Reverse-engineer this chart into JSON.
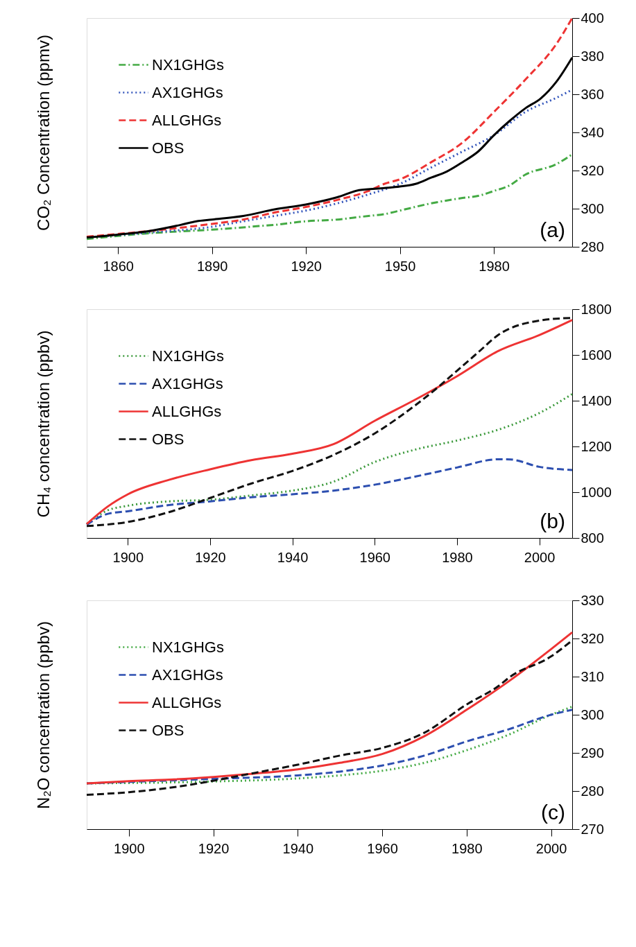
{
  "chart_data": [
    {
      "type": "line",
      "ylabel": "CO₂ Concentration (ppmv)",
      "annotations": [
        "(a)"
      ],
      "legend": "top left",
      "grid": false,
      "xlim": [
        1850,
        2005
      ],
      "xticks": [
        1860,
        1890,
        1920,
        1950,
        1980
      ],
      "ylim": [
        280,
        400
      ],
      "yticks": [
        280,
        300,
        320,
        340,
        360,
        380,
        400
      ],
      "series": [
        {
          "name": "NX1GHGs",
          "color": "#44aa44",
          "line_style": "dashdot",
          "x": [
            1850,
            1870,
            1890,
            1900,
            1905,
            1910,
            1920,
            1930,
            1940,
            1945,
            1950,
            1960,
            1970,
            1975,
            1980,
            1985,
            1990,
            2000,
            2005
          ],
          "values": [
            284.1,
            287.1,
            289.0,
            290.2,
            290.9,
            291.5,
            293.4,
            294.3,
            296.2,
            297.1,
            299.0,
            302.8,
            305.6,
            306.7,
            309.3,
            312.2,
            317.8,
            323.4,
            328.5
          ]
        },
        {
          "name": "AX1GHGs",
          "color": "#3355bb",
          "line_style": "dotted",
          "x": [
            1850,
            1870,
            1890,
            1900,
            1910,
            1920,
            1930,
            1940,
            1950,
            1960,
            1970,
            1980,
            1990,
            2000,
            2005
          ],
          "values": [
            284.9,
            287.5,
            290.5,
            293.4,
            296.2,
            299.0,
            302.8,
            307.5,
            313.0,
            321.6,
            330.0,
            338.5,
            350.7,
            358.2,
            362.4
          ]
        },
        {
          "name": "ALLGHGs",
          "color": "#ee3333",
          "line_style": "dashed",
          "x": [
            1850,
            1870,
            1890,
            1900,
            1910,
            1920,
            1930,
            1940,
            1945,
            1950,
            1960,
            1970,
            1980,
            1990,
            2000,
            2005
          ],
          "values": [
            285.3,
            288.3,
            292.0,
            294.3,
            298.0,
            300.9,
            304.6,
            309.3,
            313.0,
            315.4,
            324.4,
            334.7,
            350.7,
            367.6,
            386.5,
            400.0
          ]
        },
        {
          "name": "OBS",
          "color": "#000000",
          "line_style": "solid",
          "x": [
            1850,
            1860,
            1870,
            1880,
            1885,
            1890,
            1900,
            1910,
            1920,
            1930,
            1937,
            1945,
            1950,
            1955,
            1960,
            1965,
            1970,
            1975,
            1980,
            1985,
            1990,
            1995,
            2000,
            2005
          ],
          "values": [
            284.9,
            286.4,
            288.3,
            291.5,
            293.4,
            294.3,
            296.2,
            299.6,
            302.2,
            306.0,
            309.7,
            310.8,
            311.6,
            313.0,
            316.3,
            319.5,
            324.4,
            330.0,
            338.5,
            346.0,
            352.6,
            357.9,
            366.7,
            379.3
          ]
        }
      ]
    },
    {
      "type": "line",
      "ylabel": "CH₄ concentration (ppbv)",
      "annotations": [
        "(b)"
      ],
      "legend": "top left",
      "grid": false,
      "xlim": [
        1890,
        2008
      ],
      "xticks": [
        1900,
        1920,
        1940,
        1960,
        1980,
        2000
      ],
      "ylim": [
        800,
        1800
      ],
      "yticks": [
        800,
        1000,
        1200,
        1400,
        1600,
        1800
      ],
      "series": [
        {
          "name": "NX1GHGs",
          "color": "#3c9a3c",
          "line_style": "dotted",
          "x": [
            1890,
            1895,
            1900,
            1910,
            1920,
            1930,
            1940,
            1950,
            1960,
            1970,
            1980,
            1990,
            2000,
            2008
          ],
          "values": [
            861,
            920,
            941,
            960,
            967,
            986,
            1007,
            1046,
            1132,
            1187,
            1226,
            1273,
            1346,
            1429
          ]
        },
        {
          "name": "AX1GHGs",
          "color": "#2d4fb0",
          "line_style": "dashed",
          "x": [
            1890,
            1895,
            1900,
            1910,
            1920,
            1930,
            1940,
            1950,
            1960,
            1970,
            1980,
            1990,
            1993,
            2000,
            2008
          ],
          "values": [
            858,
            905,
            917,
            944,
            960,
            978,
            991,
            1007,
            1033,
            1069,
            1108,
            1144,
            1143,
            1111,
            1097
          ]
        },
        {
          "name": "ALLGHGs",
          "color": "#ee3333",
          "line_style": "solid",
          "x": [
            1890,
            1895,
            1900,
            1910,
            1920,
            1930,
            1940,
            1950,
            1960,
            1970,
            1980,
            1990,
            2000,
            2008
          ],
          "values": [
            861,
            936,
            991,
            1054,
            1100,
            1140,
            1168,
            1210,
            1312,
            1406,
            1507,
            1617,
            1687,
            1753
          ]
        },
        {
          "name": "OBS",
          "color": "#111111",
          "line_style": "dashed",
          "x": [
            1890,
            1900,
            1910,
            1920,
            1930,
            1940,
            1950,
            1960,
            1970,
            1975,
            1980,
            1985,
            1990,
            2000,
            2008
          ],
          "values": [
            852,
            870,
            913,
            975,
            1038,
            1093,
            1163,
            1257,
            1382,
            1453,
            1531,
            1609,
            1687,
            1750,
            1762
          ]
        }
      ]
    },
    {
      "type": "line",
      "ylabel": "N₂O concentration (ppbv)",
      "annotations": [
        "(c)"
      ],
      "legend": "top left",
      "grid": false,
      "xlim": [
        1890,
        2005
      ],
      "xticks": [
        1900,
        1920,
        1940,
        1960,
        1980,
        2000
      ],
      "ylim": [
        270,
        330
      ],
      "yticks": [
        270,
        280,
        290,
        300,
        310,
        320,
        330
      ],
      "series": [
        {
          "name": "NX1GHGs",
          "color": "#44aa44",
          "line_style": "dotted",
          "x": [
            1890,
            1920,
            1940,
            1950,
            1960,
            1970,
            1980,
            1990,
            2000,
            2005
          ],
          "values": [
            282.0,
            282.5,
            283.3,
            284.1,
            285.3,
            287.4,
            290.7,
            294.8,
            300.0,
            302.1
          ]
        },
        {
          "name": "AX1GHGs",
          "color": "#2d4fb0",
          "line_style": "dashed",
          "x": [
            1890,
            1920,
            1940,
            1950,
            1960,
            1970,
            1980,
            1990,
            2000,
            2005
          ],
          "values": [
            282.0,
            283.2,
            284.1,
            285.1,
            286.7,
            289.3,
            293.0,
            296.2,
            300.0,
            301.3
          ]
        },
        {
          "name": "ALLGHGs",
          "color": "#ee3333",
          "line_style": "solid",
          "x": [
            1890,
            1900,
            1910,
            1920,
            1930,
            1940,
            1950,
            1960,
            1970,
            1980,
            1990,
            2000,
            2005
          ],
          "values": [
            282.0,
            282.6,
            283.0,
            283.7,
            284.6,
            285.7,
            287.4,
            289.7,
            294.4,
            301.3,
            308.8,
            317.2,
            321.6
          ]
        },
        {
          "name": "OBS",
          "color": "#111111",
          "line_style": "dashed",
          "x": [
            1890,
            1900,
            1910,
            1920,
            1930,
            1940,
            1950,
            1960,
            1970,
            1980,
            1988,
            1990,
            2000,
            2005
          ],
          "values": [
            279.0,
            279.7,
            280.9,
            282.7,
            284.8,
            286.9,
            289.3,
            291.3,
            295.3,
            302.7,
            307.9,
            309.7,
            315.3,
            319.5
          ]
        }
      ]
    }
  ]
}
